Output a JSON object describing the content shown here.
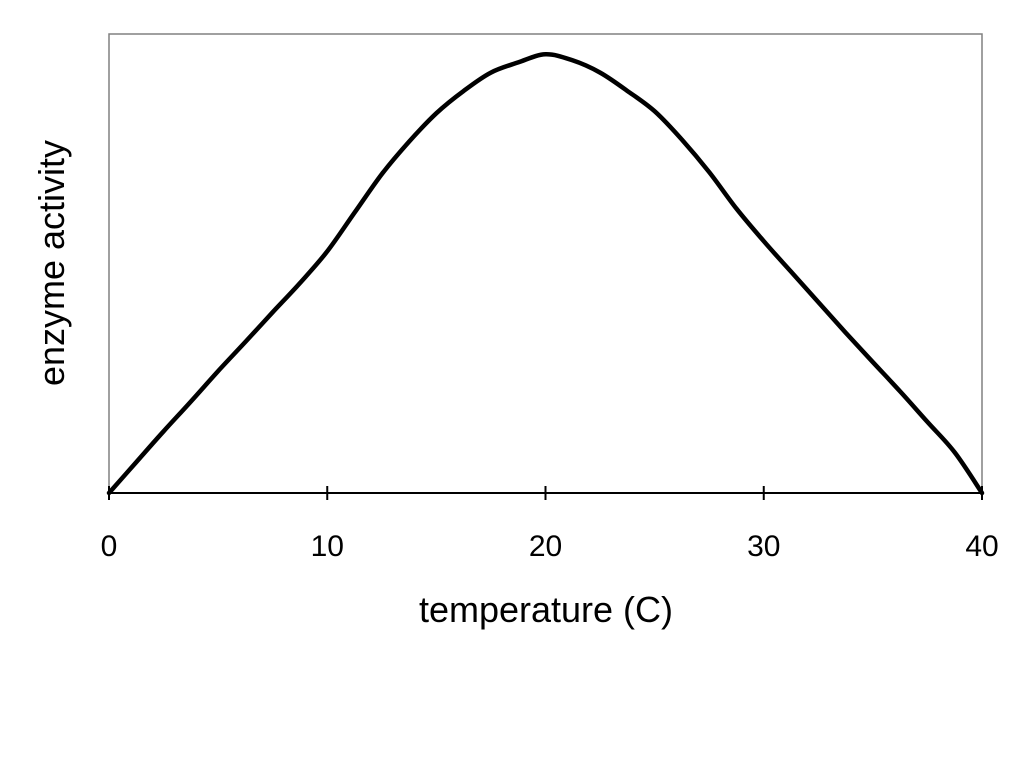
{
  "chart_data": {
    "type": "line",
    "title": "",
    "xlabel": "temperature (C)",
    "ylabel": "enzyme activity",
    "xlim": [
      0,
      40
    ],
    "ylim": [
      0,
      1.13
    ],
    "x_ticks": [
      0,
      10,
      20,
      30,
      40
    ],
    "x_tick_labels": [
      "0",
      "10",
      "20",
      "30",
      "40"
    ],
    "y_ticks_shown": false,
    "grid": false,
    "legend": "none",
    "series": [
      {
        "x": [
          0,
          1.25,
          2.5,
          3.75,
          5,
          6.25,
          7.5,
          8.75,
          10,
          11.25,
          12.5,
          13.75,
          15,
          16.25,
          17.5,
          18.75,
          20,
          21.25,
          22.5,
          23.75,
          25,
          26.25,
          27.5,
          28.75,
          30,
          31.25,
          32.5,
          33.75,
          35,
          36.25,
          37.5,
          38.75,
          40
        ],
        "y": [
          0.0,
          0.076,
          0.152,
          0.225,
          0.3,
          0.372,
          0.445,
          0.517,
          0.595,
          0.69,
          0.785,
          0.865,
          0.935,
          0.99,
          1.035,
          1.06,
          1.08,
          1.065,
          1.035,
          0.99,
          0.94,
          0.87,
          0.79,
          0.7,
          0.62,
          0.545,
          0.47,
          0.395,
          0.322,
          0.25,
          0.175,
          0.1,
          0.0
        ],
        "color": "#000000"
      }
    ]
  }
}
